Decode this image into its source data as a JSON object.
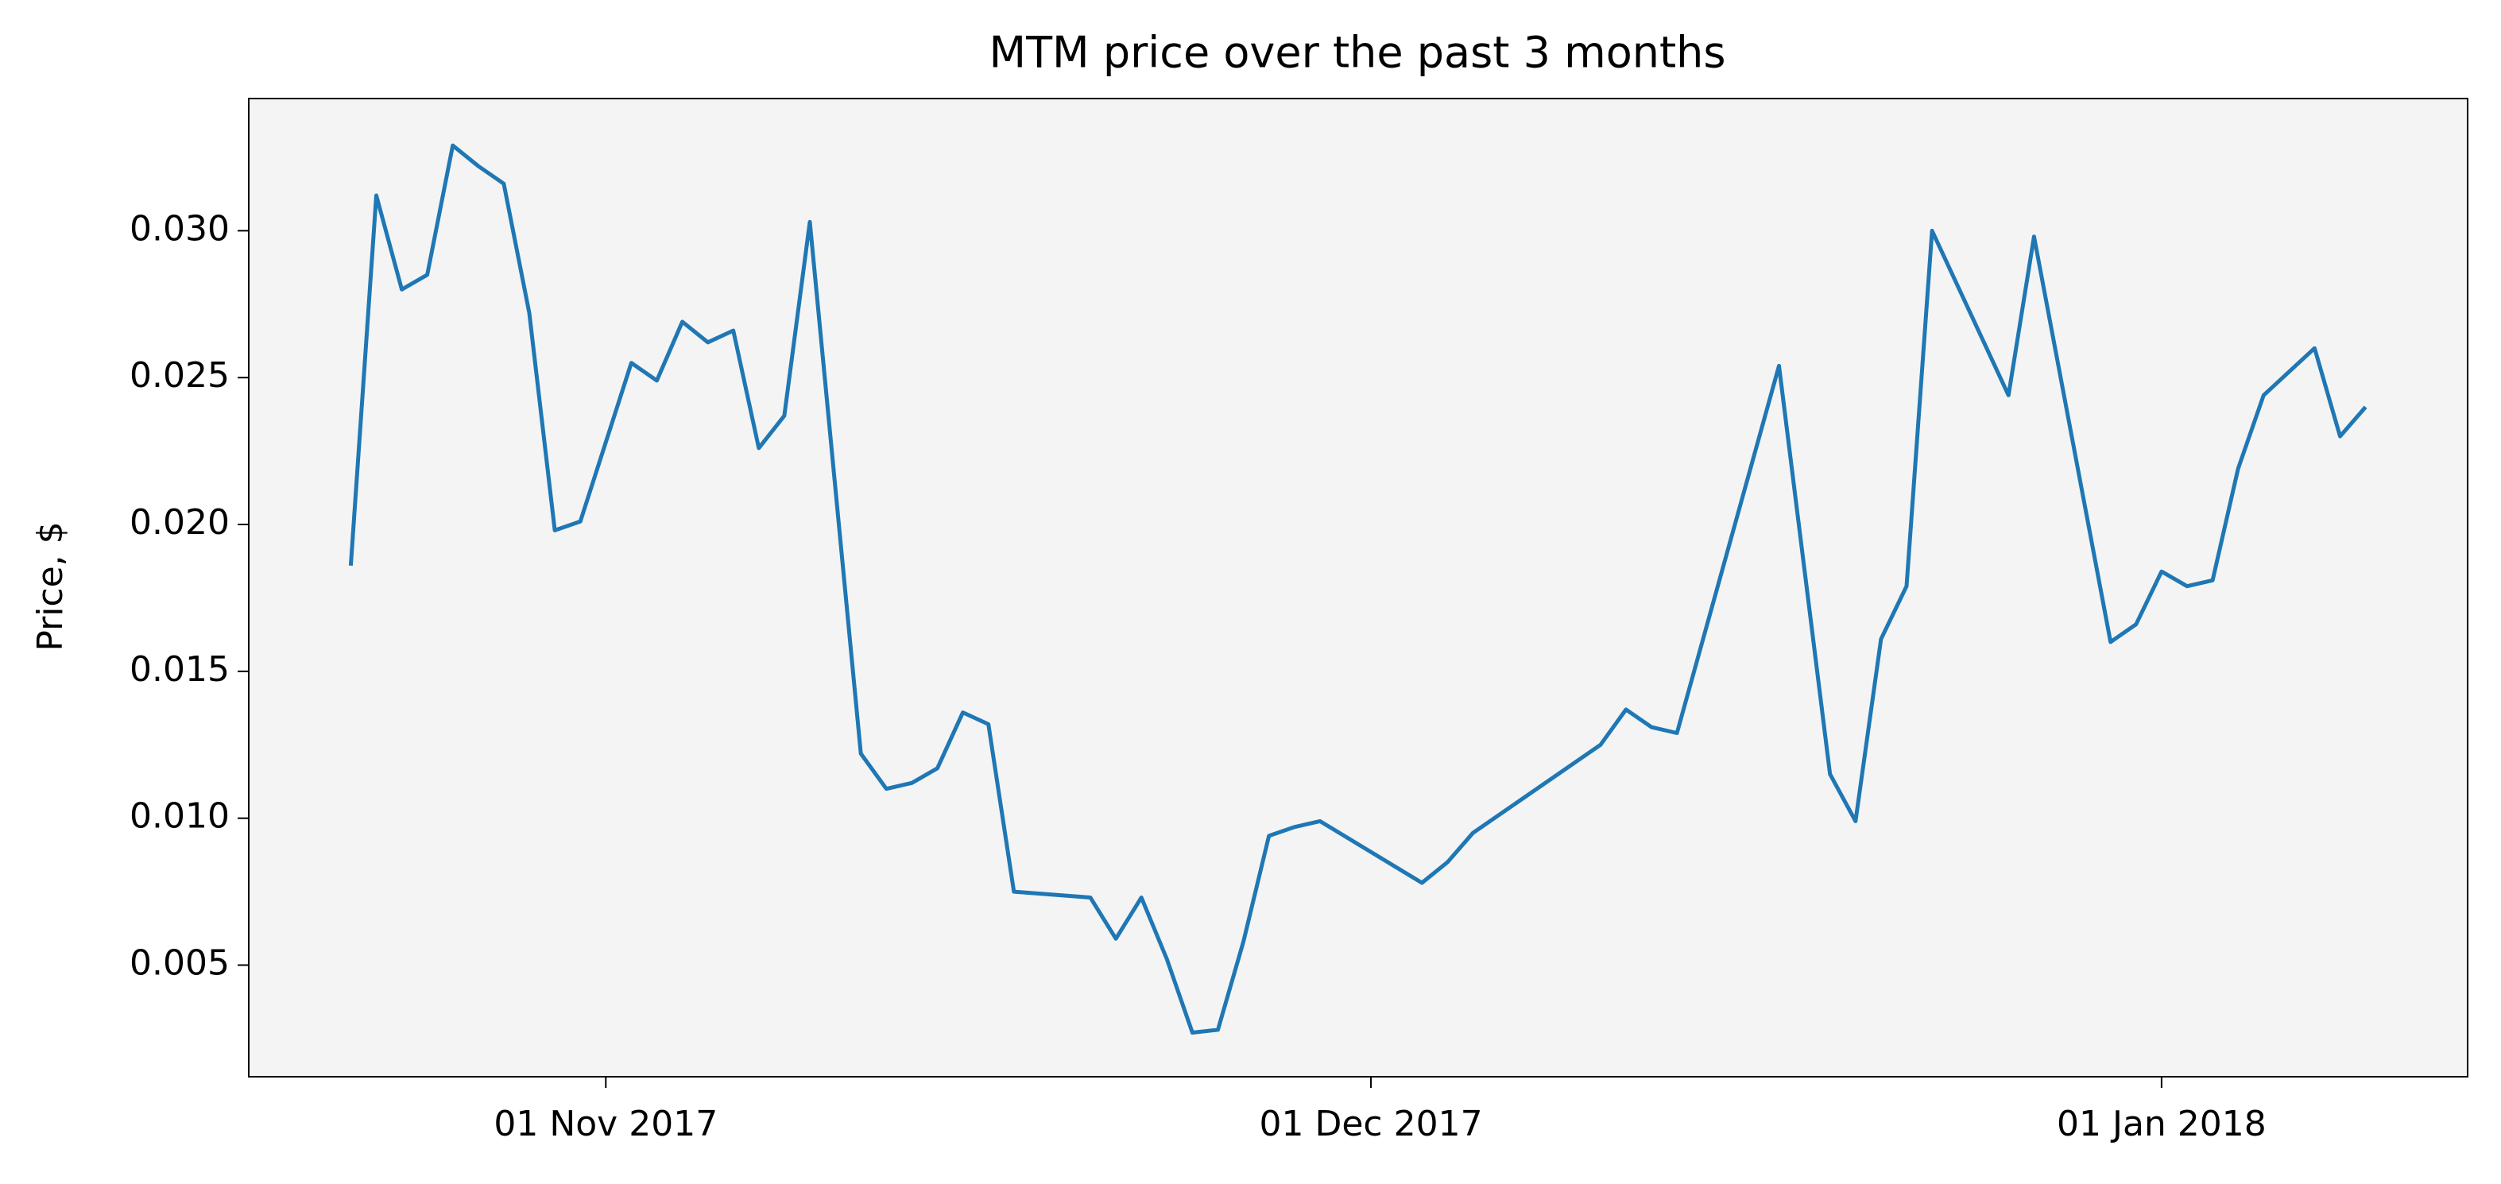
{
  "chart_data": {
    "type": "line",
    "title": "MTM price over the past 3 months",
    "y_label": "Price, $",
    "x": [
      "2017-10-22",
      "2017-10-23",
      "2017-10-24",
      "2017-10-25",
      "2017-10-26",
      "2017-10-27",
      "2017-10-28",
      "2017-10-29",
      "2017-10-30",
      "2017-10-31",
      "2017-11-02",
      "2017-11-03",
      "2017-11-04",
      "2017-11-05",
      "2017-11-06",
      "2017-11-07",
      "2017-11-08",
      "2017-11-09",
      "2017-11-11",
      "2017-11-12",
      "2017-11-13",
      "2017-11-14",
      "2017-11-15",
      "2017-11-16",
      "2017-11-17",
      "2017-11-20",
      "2017-11-21",
      "2017-11-22",
      "2017-11-23",
      "2017-11-24",
      "2017-11-25",
      "2017-11-26",
      "2017-11-27",
      "2017-11-28",
      "2017-11-29",
      "2017-12-03",
      "2017-12-04",
      "2017-12-05",
      "2017-12-10",
      "2017-12-11",
      "2017-12-12",
      "2017-12-13",
      "2017-12-17",
      "2017-12-19",
      "2017-12-20",
      "2017-12-21",
      "2017-12-22",
      "2017-12-23",
      "2017-12-26",
      "2017-12-27",
      "2017-12-30",
      "2017-12-31",
      "2018-01-01",
      "2018-01-02",
      "2018-01-03",
      "2018-01-04",
      "2018-01-05",
      "2018-01-07",
      "2018-01-08",
      "2018-01-09"
    ],
    "series": [
      {
        "name": "MTM",
        "color": "#1f77b4",
        "values": [
          0.0186,
          0.0312,
          0.028,
          0.0285,
          0.0329,
          0.0322,
          0.0316,
          0.0272,
          0.0198,
          0.0201,
          0.0255,
          0.0249,
          0.0269,
          0.0262,
          0.0266,
          0.0226,
          0.0237,
          0.0303,
          0.0122,
          0.011,
          0.0112,
          0.0117,
          0.0136,
          0.0132,
          0.0075,
          0.0073,
          0.0059,
          0.0073,
          0.0052,
          0.0027,
          0.0028,
          0.0058,
          0.0094,
          0.0097,
          0.0099,
          0.0078,
          0.0085,
          0.0095,
          0.0125,
          0.0137,
          0.0131,
          0.0129,
          0.0254,
          0.0115,
          0.0099,
          0.0161,
          0.0179,
          0.03,
          0.0244,
          0.0298,
          0.016,
          0.0166,
          0.0184,
          0.0179,
          0.0181,
          0.0219,
          0.0244,
          0.026,
          0.023,
          0.024
        ]
      }
    ],
    "xlim": [
      "2017-10-18",
      "2018-01-13"
    ],
    "xticks": [
      {
        "value": "2017-11-01",
        "label": "01 Nov 2017"
      },
      {
        "value": "2017-12-01",
        "label": "01 Dec 2017"
      },
      {
        "value": "2018-01-01",
        "label": "01 Jan 2018"
      }
    ],
    "ylim": [
      0.0012,
      0.0345
    ],
    "yticks": [
      0.005,
      {
        "value": 0.01,
        "label": "0.010"
      },
      0.015,
      {
        "value": 0.02,
        "label": "0.020"
      },
      0.025,
      {
        "value": 0.03,
        "label": "0.030"
      }
    ],
    "background": "#f4f4f4",
    "grid": false
  }
}
